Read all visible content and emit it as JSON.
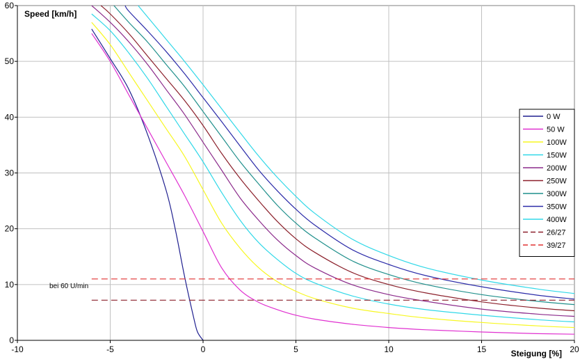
{
  "chart_data": {
    "type": "line",
    "xlabel": "Steigung [%]",
    "ylabel": "Speed [km/h]",
    "xlim": [
      -10,
      20
    ],
    "ylim": [
      0,
      60
    ],
    "xticks": [
      -10,
      -5,
      0,
      5,
      10,
      15,
      20
    ],
    "yticks": [
      0,
      10,
      20,
      30,
      40,
      50,
      60
    ],
    "grid": true,
    "legend_position": "right",
    "annotation": "bei 60 U/min",
    "series": [
      {
        "name": "0 W",
        "color": "#1f1f8f",
        "dash": false,
        "x": [
          -6,
          -5,
          -4,
          -3,
          -2,
          -1.5,
          -1,
          -0.5,
          -0.3,
          0
        ],
        "y": [
          55.8,
          50.5,
          45,
          37,
          27,
          20,
          11.5,
          4,
          1.5,
          0
        ]
      },
      {
        "name": "50 W",
        "color": "#e030d0",
        "dash": false,
        "x": [
          -6,
          -5,
          -4,
          -3,
          -2,
          -1,
          0,
          1,
          2,
          3,
          4,
          5,
          6,
          8,
          10,
          12,
          15,
          18,
          20
        ],
        "y": [
          55,
          50,
          44,
          38,
          32,
          26,
          19.5,
          13,
          9,
          6.8,
          5.5,
          4.5,
          3.8,
          2.9,
          2.3,
          1.9,
          1.5,
          1.2,
          1.1
        ]
      },
      {
        "name": "100W",
        "color": "#f7f720",
        "dash": false,
        "x": [
          -6,
          -5,
          -4,
          -3,
          -2,
          -1,
          0,
          1,
          2,
          3,
          4,
          5,
          6,
          8,
          10,
          12,
          15,
          18,
          20
        ],
        "y": [
          57,
          53,
          48,
          43,
          38,
          33,
          27,
          21,
          16.5,
          13,
          10.5,
          8.8,
          7.5,
          5.8,
          4.8,
          4,
          3.2,
          2.6,
          2.3
        ]
      },
      {
        "name": "150W",
        "color": "#30d8e8",
        "dash": false,
        "x": [
          -6,
          -5,
          -4,
          -3,
          -2,
          -1,
          0,
          1,
          2,
          3,
          4,
          5,
          6,
          8,
          10,
          12,
          15,
          18,
          20
        ],
        "y": [
          58.5,
          55.5,
          51.5,
          47,
          42,
          37,
          32,
          26.5,
          21.5,
          17.5,
          14.5,
          12,
          10.3,
          8,
          6.5,
          5.5,
          4.5,
          3.7,
          3.3
        ]
      },
      {
        "name": "200W",
        "color": "#8b2a8b",
        "dash": false,
        "x": [
          -6,
          -5,
          -4,
          -3,
          -2,
          -1,
          0,
          1,
          2,
          3,
          4,
          5,
          6,
          8,
          10,
          12,
          15,
          18,
          20
        ],
        "y": [
          60,
          57,
          53.5,
          49.5,
          45,
          40.5,
          35.5,
          30.5,
          25.5,
          21.5,
          18,
          15.2,
          13,
          10,
          8.2,
          7,
          5.6,
          4.7,
          4.3
        ]
      },
      {
        "name": "250W",
        "color": "#8b1f2a",
        "dash": false,
        "x": [
          -5.5,
          -5,
          -4,
          -3,
          -2,
          -1,
          0,
          1,
          2,
          3,
          4,
          5,
          6,
          8,
          10,
          12,
          15,
          18,
          20
        ],
        "y": [
          60,
          58.5,
          55,
          51,
          47,
          43,
          38.5,
          33.5,
          29,
          25,
          21.3,
          18.2,
          15.8,
          12.2,
          10,
          8.5,
          6.9,
          5.8,
          5.3
        ]
      },
      {
        "name": "300W",
        "color": "#1f8f8b",
        "dash": false,
        "x": [
          -4.8,
          -4,
          -3,
          -2,
          -1,
          0,
          1,
          2,
          3,
          4,
          5,
          6,
          8,
          10,
          12,
          15,
          18,
          20
        ],
        "y": [
          60,
          57,
          53.5,
          49.5,
          45.5,
          41,
          36.5,
          32,
          28,
          24.2,
          21,
          18.4,
          14.3,
          11.8,
          10,
          8.2,
          7,
          6.4
        ]
      },
      {
        "name": "350W",
        "color": "#2a2aa8",
        "dash": false,
        "x": [
          -4.2,
          -4,
          -3,
          -2,
          -1,
          0,
          1,
          2,
          3,
          4,
          5,
          6,
          8,
          10,
          12,
          15,
          18,
          20
        ],
        "y": [
          60,
          59,
          55.5,
          51.8,
          47.8,
          43.5,
          39.2,
          34.8,
          30.5,
          26.8,
          23.5,
          20.7,
          16.3,
          13.6,
          11.6,
          9.6,
          8.1,
          7.4
        ]
      },
      {
        "name": "400W",
        "color": "#30d8e8",
        "dash": false,
        "x": [
          -3.5,
          -3,
          -2,
          -1,
          0,
          1,
          2,
          3,
          4,
          5,
          6,
          8,
          10,
          12,
          15,
          18,
          20
        ],
        "y": [
          60,
          58,
          54,
          50,
          45.8,
          41.5,
          37.2,
          33,
          29.2,
          25.8,
          22.8,
          18.2,
          15.2,
          13,
          10.8,
          9.2,
          8.4
        ]
      },
      {
        "name": "26/27",
        "color": "#8b1f2a",
        "dash": true,
        "x": [
          -6,
          20
        ],
        "y": [
          7.2,
          7.2
        ]
      },
      {
        "name": "39/27",
        "color": "#e03030",
        "dash": true,
        "x": [
          -6,
          20
        ],
        "y": [
          11,
          11
        ]
      }
    ]
  }
}
